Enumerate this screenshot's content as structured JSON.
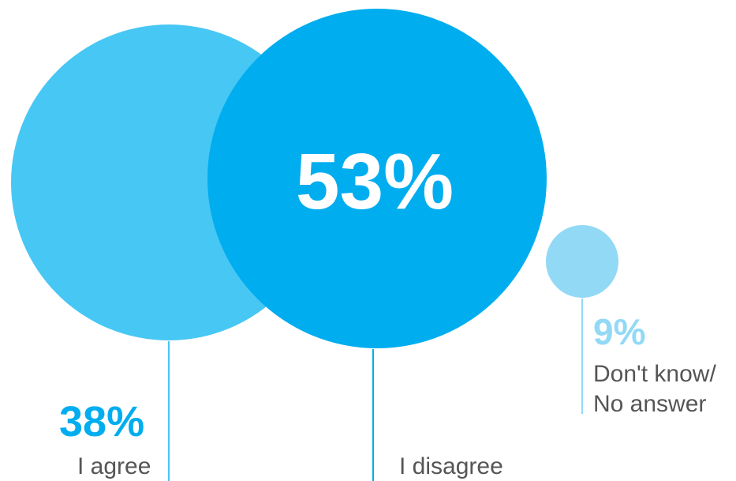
{
  "chart_data": {
    "type": "bubble",
    "title": "",
    "unit": "%",
    "series": [
      {
        "category": "I agree",
        "value": 38,
        "value_label": "38%",
        "color": "#47c7f4"
      },
      {
        "category": "I disagree",
        "value": 53,
        "value_label": "53%",
        "color": "#00adef"
      },
      {
        "category_lines": [
          "Don't know/",
          "No answer"
        ],
        "value": 9,
        "value_label": "9%",
        "color": "#92d9f6"
      }
    ],
    "grid": false,
    "legend": "none"
  }
}
